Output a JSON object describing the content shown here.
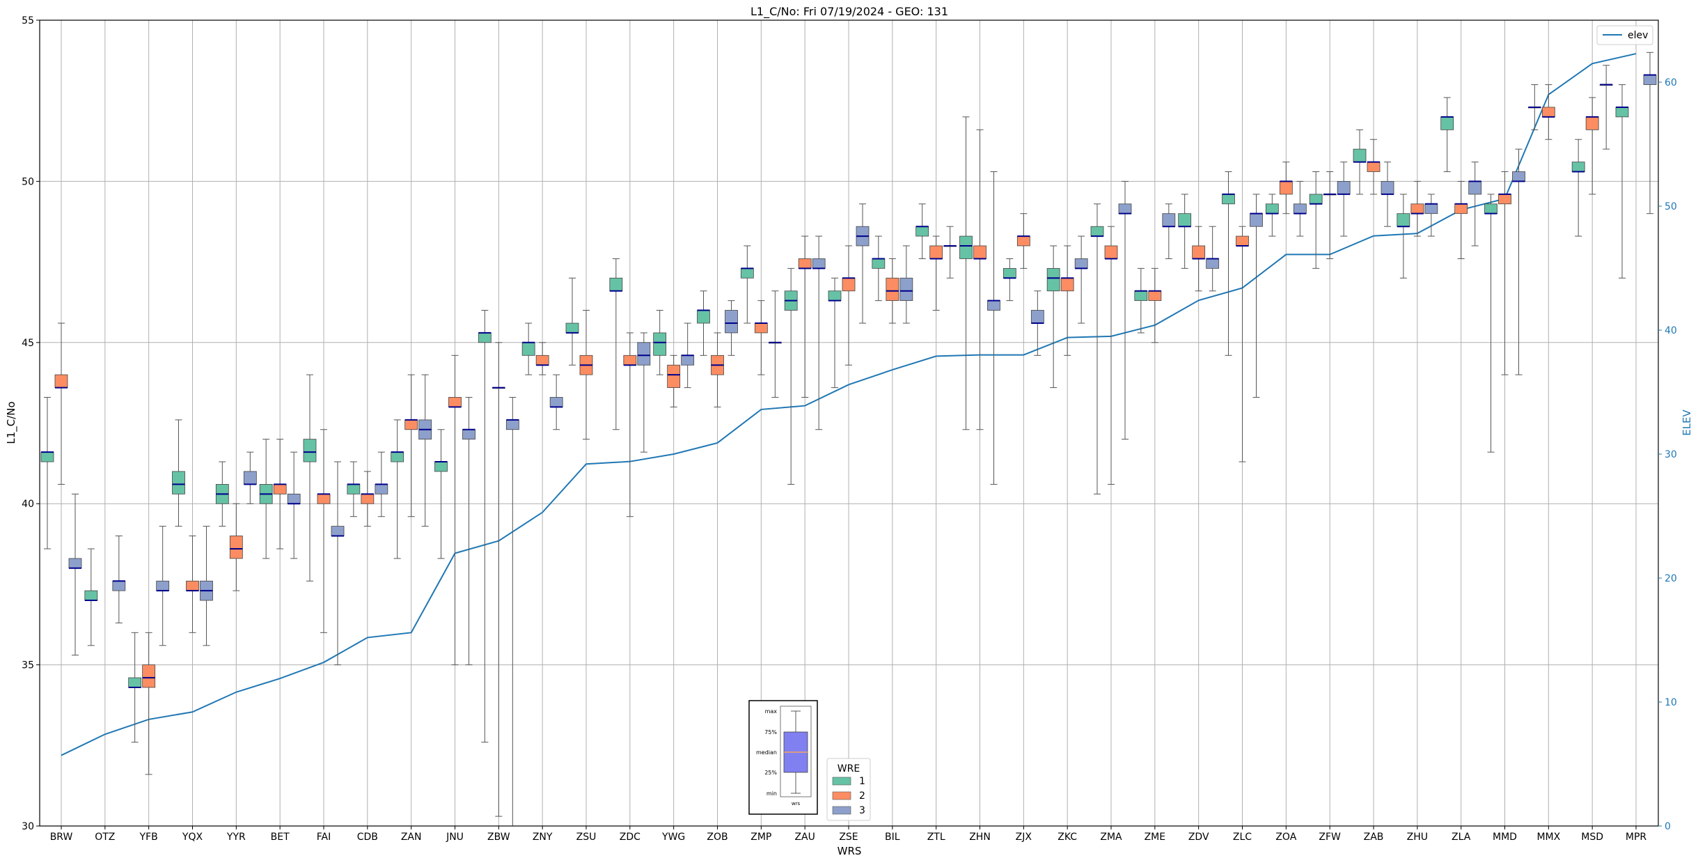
{
  "chart_data": {
    "type": "box",
    "title": "L1_C/No: Fri 07/19/2024 - GEO: 131",
    "xlabel": "WRS",
    "ylabel": "L1_C/No",
    "y2label": "ELEV",
    "ylim": [
      30,
      55
    ],
    "y2lim": [
      0,
      65
    ],
    "yticks": [
      30,
      35,
      40,
      45,
      50,
      55
    ],
    "y2ticks": [
      0,
      10,
      20,
      30,
      40,
      50,
      60
    ],
    "grid": true,
    "categories": [
      "BRW",
      "OTZ",
      "YFB",
      "YQX",
      "YYR",
      "BET",
      "FAI",
      "CDB",
      "ZAN",
      "JNU",
      "ZBW",
      "ZNY",
      "ZSU",
      "ZDC",
      "YWG",
      "ZOB",
      "ZMP",
      "ZAU",
      "ZSE",
      "BIL",
      "ZTL",
      "ZHN",
      "ZJX",
      "ZKC",
      "ZMA",
      "ZME",
      "ZDV",
      "ZLC",
      "ZOA",
      "ZFW",
      "ZAB",
      "ZHU",
      "ZLA",
      "MMD",
      "MMX",
      "MSD",
      "MPR"
    ],
    "series_colors": {
      "1": "#66c2a5",
      "2": "#fc8d62",
      "3": "#8da0cb"
    },
    "line_series": {
      "name": "elev",
      "color": "#1f77b4",
      "values": [
        5.7,
        7.4,
        8.6,
        9.2,
        10.8,
        11.9,
        13.2,
        15.2,
        15.6,
        22.0,
        23.0,
        25.3,
        29.2,
        29.4,
        30.0,
        30.9,
        33.6,
        33.9,
        35.6,
        36.8,
        37.9,
        38.0,
        38.0,
        39.4,
        39.5,
        40.4,
        42.4,
        43.4,
        46.1,
        46.1,
        47.6,
        47.8,
        49.7,
        50.6,
        59.0,
        61.5,
        62.3
      ]
    },
    "boxes": [
      {
        "station": "BRW",
        "wre": 1,
        "min": 38.6,
        "q1": 41.3,
        "median": 41.6,
        "q3": 41.6,
        "max": 43.3
      },
      {
        "station": "BRW",
        "wre": 2,
        "min": 40.6,
        "q1": 43.6,
        "median": 43.6,
        "q3": 44.0,
        "max": 45.6
      },
      {
        "station": "BRW",
        "wre": 3,
        "min": 35.3,
        "q1": 38.0,
        "median": 38.0,
        "q3": 38.3,
        "max": 40.3
      },
      {
        "station": "OTZ",
        "wre": 1,
        "min": 35.6,
        "q1": 37.0,
        "median": 37.0,
        "q3": 37.3,
        "max": 38.6
      },
      {
        "station": "OTZ",
        "wre": 3,
        "min": 36.3,
        "q1": 37.3,
        "median": 37.6,
        "q3": 37.6,
        "max": 39.0
      },
      {
        "station": "YFB",
        "wre": 1,
        "min": 32.6,
        "q1": 34.3,
        "median": 34.3,
        "q3": 34.6,
        "max": 36.0
      },
      {
        "station": "YFB",
        "wre": 2,
        "min": 31.6,
        "q1": 34.3,
        "median": 34.6,
        "q3": 35.0,
        "max": 36.0
      },
      {
        "station": "YFB",
        "wre": 3,
        "min": 35.6,
        "q1": 37.3,
        "median": 37.3,
        "q3": 37.6,
        "max": 39.3
      },
      {
        "station": "YQX",
        "wre": 1,
        "min": 39.3,
        "q1": 40.3,
        "median": 40.6,
        "q3": 41.0,
        "max": 42.6
      },
      {
        "station": "YQX",
        "wre": 2,
        "min": 36.0,
        "q1": 37.3,
        "median": 37.3,
        "q3": 37.6,
        "max": 39.0
      },
      {
        "station": "YQX",
        "wre": 3,
        "min": 35.6,
        "q1": 37.0,
        "median": 37.3,
        "q3": 37.6,
        "max": 39.3
      },
      {
        "station": "YYR",
        "wre": 1,
        "min": 39.3,
        "q1": 40.0,
        "median": 40.3,
        "q3": 40.6,
        "max": 41.3
      },
      {
        "station": "YYR",
        "wre": 2,
        "min": 37.3,
        "q1": 38.3,
        "median": 38.6,
        "q3": 39.0,
        "max": 40.0
      },
      {
        "station": "YYR",
        "wre": 3,
        "min": 40.0,
        "q1": 40.6,
        "median": 40.6,
        "q3": 41.0,
        "max": 41.6
      },
      {
        "station": "BET",
        "wre": 1,
        "min": 38.3,
        "q1": 40.0,
        "median": 40.3,
        "q3": 40.6,
        "max": 42.0
      },
      {
        "station": "BET",
        "wre": 2,
        "min": 38.6,
        "q1": 40.3,
        "median": 40.6,
        "q3": 40.6,
        "max": 42.0
      },
      {
        "station": "BET",
        "wre": 3,
        "min": 38.3,
        "q1": 40.0,
        "median": 40.0,
        "q3": 40.3,
        "max": 41.6
      },
      {
        "station": "FAI",
        "wre": 1,
        "min": 37.6,
        "q1": 41.3,
        "median": 41.6,
        "q3": 42.0,
        "max": 44.0
      },
      {
        "station": "FAI",
        "wre": 2,
        "min": 36.0,
        "q1": 40.0,
        "median": 40.3,
        "q3": 40.3,
        "max": 42.3
      },
      {
        "station": "FAI",
        "wre": 3,
        "min": 35.0,
        "q1": 39.0,
        "median": 39.0,
        "q3": 39.3,
        "max": 41.3
      },
      {
        "station": "CDB",
        "wre": 1,
        "min": 39.6,
        "q1": 40.3,
        "median": 40.6,
        "q3": 40.6,
        "max": 41.3
      },
      {
        "station": "CDB",
        "wre": 2,
        "min": 39.3,
        "q1": 40.0,
        "median": 40.3,
        "q3": 40.3,
        "max": 41.0
      },
      {
        "station": "CDB",
        "wre": 3,
        "min": 39.6,
        "q1": 40.3,
        "median": 40.6,
        "q3": 40.6,
        "max": 41.6
      },
      {
        "station": "ZAN",
        "wre": 1,
        "min": 38.3,
        "q1": 41.3,
        "median": 41.6,
        "q3": 41.6,
        "max": 42.6
      },
      {
        "station": "ZAN",
        "wre": 2,
        "min": 39.6,
        "q1": 42.3,
        "median": 42.6,
        "q3": 42.6,
        "max": 44.0
      },
      {
        "station": "ZAN",
        "wre": 3,
        "min": 39.3,
        "q1": 42.0,
        "median": 42.3,
        "q3": 42.6,
        "max": 44.0
      },
      {
        "station": "JNU",
        "wre": 1,
        "min": 38.3,
        "q1": 41.0,
        "median": 41.3,
        "q3": 41.3,
        "max": 42.3
      },
      {
        "station": "JNU",
        "wre": 2,
        "min": 35.0,
        "q1": 43.0,
        "median": 43.0,
        "q3": 43.3,
        "max": 44.6
      },
      {
        "station": "JNU",
        "wre": 3,
        "min": 35.0,
        "q1": 42.0,
        "median": 42.3,
        "q3": 42.3,
        "max": 43.3
      },
      {
        "station": "ZBW",
        "wre": 1,
        "min": 32.6,
        "q1": 45.0,
        "median": 45.3,
        "q3": 45.3,
        "max": 46.0
      },
      {
        "station": "ZBW",
        "wre": 2,
        "min": 30.3,
        "q1": 43.6,
        "median": 43.6,
        "q3": 43.6,
        "max": 45.0
      },
      {
        "station": "ZBW",
        "wre": 3,
        "min": 30.0,
        "q1": 42.3,
        "median": 42.6,
        "q3": 42.6,
        "max": 43.3
      },
      {
        "station": "ZNY",
        "wre": 1,
        "min": 44.0,
        "q1": 44.6,
        "median": 45.0,
        "q3": 45.0,
        "max": 45.6
      },
      {
        "station": "ZNY",
        "wre": 2,
        "min": 44.0,
        "q1": 44.3,
        "median": 44.3,
        "q3": 44.6,
        "max": 45.0
      },
      {
        "station": "ZNY",
        "wre": 3,
        "min": 42.3,
        "q1": 43.0,
        "median": 43.0,
        "q3": 43.3,
        "max": 44.0
      },
      {
        "station": "ZSU",
        "wre": 1,
        "min": 44.3,
        "q1": 45.3,
        "median": 45.3,
        "q3": 45.6,
        "max": 47.0
      },
      {
        "station": "ZSU",
        "wre": 2,
        "min": 42.0,
        "q1": 44.0,
        "median": 44.3,
        "q3": 44.6,
        "max": 46.0
      },
      {
        "station": "ZDC",
        "wre": 1,
        "min": 42.3,
        "q1": 46.6,
        "median": 46.6,
        "q3": 47.0,
        "max": 47.6
      },
      {
        "station": "ZDC",
        "wre": 2,
        "min": 39.6,
        "q1": 44.3,
        "median": 44.3,
        "q3": 44.6,
        "max": 45.3
      },
      {
        "station": "ZDC",
        "wre": 3,
        "min": 41.6,
        "q1": 44.3,
        "median": 44.6,
        "q3": 45.0,
        "max": 45.3
      },
      {
        "station": "YWG",
        "wre": 1,
        "min": 44.0,
        "q1": 44.6,
        "median": 45.0,
        "q3": 45.3,
        "max": 46.0
      },
      {
        "station": "YWG",
        "wre": 2,
        "min": 43.0,
        "q1": 43.6,
        "median": 44.0,
        "q3": 44.3,
        "max": 44.6
      },
      {
        "station": "YWG",
        "wre": 3,
        "min": 43.6,
        "q1": 44.3,
        "median": 44.6,
        "q3": 44.6,
        "max": 45.6
      },
      {
        "station": "ZOB",
        "wre": 1,
        "min": 44.6,
        "q1": 45.6,
        "median": 46.0,
        "q3": 46.0,
        "max": 46.6
      },
      {
        "station": "ZOB",
        "wre": 2,
        "min": 43.0,
        "q1": 44.0,
        "median": 44.3,
        "q3": 44.6,
        "max": 45.3
      },
      {
        "station": "ZOB",
        "wre": 3,
        "min": 44.6,
        "q1": 45.3,
        "median": 45.6,
        "q3": 46.0,
        "max": 46.3
      },
      {
        "station": "ZMP",
        "wre": 1,
        "min": 45.6,
        "q1": 47.0,
        "median": 47.3,
        "q3": 47.3,
        "max": 48.0
      },
      {
        "station": "ZMP",
        "wre": 2,
        "min": 44.0,
        "q1": 45.3,
        "median": 45.6,
        "q3": 45.6,
        "max": 46.3
      },
      {
        "station": "ZMP",
        "wre": 3,
        "min": 43.3,
        "q1": 45.0,
        "median": 45.0,
        "q3": 45.0,
        "max": 46.6
      },
      {
        "station": "ZAU",
        "wre": 1,
        "min": 40.6,
        "q1": 46.0,
        "median": 46.3,
        "q3": 46.6,
        "max": 47.3
      },
      {
        "station": "ZAU",
        "wre": 2,
        "min": 43.3,
        "q1": 47.3,
        "median": 47.3,
        "q3": 47.6,
        "max": 48.3
      },
      {
        "station": "ZAU",
        "wre": 3,
        "min": 42.3,
        "q1": 47.3,
        "median": 47.3,
        "q3": 47.6,
        "max": 48.3
      },
      {
        "station": "ZSE",
        "wre": 1,
        "min": 43.6,
        "q1": 46.3,
        "median": 46.3,
        "q3": 46.6,
        "max": 47.0
      },
      {
        "station": "ZSE",
        "wre": 2,
        "min": 44.3,
        "q1": 46.6,
        "median": 47.0,
        "q3": 47.0,
        "max": 48.0
      },
      {
        "station": "ZSE",
        "wre": 3,
        "min": 45.6,
        "q1": 48.0,
        "median": 48.3,
        "q3": 48.6,
        "max": 49.3
      },
      {
        "station": "BIL",
        "wre": 1,
        "min": 46.3,
        "q1": 47.3,
        "median": 47.6,
        "q3": 47.6,
        "max": 48.3
      },
      {
        "station": "BIL",
        "wre": 2,
        "min": 45.6,
        "q1": 46.3,
        "median": 46.6,
        "q3": 47.0,
        "max": 47.6
      },
      {
        "station": "BIL",
        "wre": 3,
        "min": 45.6,
        "q1": 46.3,
        "median": 46.6,
        "q3": 47.0,
        "max": 48.0
      },
      {
        "station": "ZTL",
        "wre": 1,
        "min": 47.6,
        "q1": 48.3,
        "median": 48.6,
        "q3": 48.6,
        "max": 49.3
      },
      {
        "station": "ZTL",
        "wre": 2,
        "min": 46.0,
        "q1": 47.6,
        "median": 47.6,
        "q3": 48.0,
        "max": 48.3
      },
      {
        "station": "ZTL",
        "wre": 3,
        "min": 47.0,
        "q1": 48.0,
        "median": 48.0,
        "q3": 48.0,
        "max": 48.6
      },
      {
        "station": "ZHN",
        "wre": 1,
        "min": 42.3,
        "q1": 47.6,
        "median": 48.0,
        "q3": 48.3,
        "max": 52.0
      },
      {
        "station": "ZHN",
        "wre": 2,
        "min": 42.3,
        "q1": 47.6,
        "median": 47.6,
        "q3": 48.0,
        "max": 51.6
      },
      {
        "station": "ZHN",
        "wre": 3,
        "min": 40.6,
        "q1": 46.0,
        "median": 46.3,
        "q3": 46.3,
        "max": 50.3
      },
      {
        "station": "ZJX",
        "wre": 1,
        "min": 46.3,
        "q1": 47.0,
        "median": 47.0,
        "q3": 47.3,
        "max": 47.6
      },
      {
        "station": "ZJX",
        "wre": 2,
        "min": 47.3,
        "q1": 48.0,
        "median": 48.3,
        "q3": 48.3,
        "max": 49.0
      },
      {
        "station": "ZJX",
        "wre": 3,
        "min": 44.6,
        "q1": 45.6,
        "median": 45.6,
        "q3": 46.0,
        "max": 46.6
      },
      {
        "station": "ZKC",
        "wre": 1,
        "min": 43.6,
        "q1": 46.6,
        "median": 47.0,
        "q3": 47.3,
        "max": 48.0
      },
      {
        "station": "ZKC",
        "wre": 2,
        "min": 44.6,
        "q1": 46.6,
        "median": 47.0,
        "q3": 47.0,
        "max": 48.0
      },
      {
        "station": "ZKC",
        "wre": 3,
        "min": 45.6,
        "q1": 47.3,
        "median": 47.3,
        "q3": 47.6,
        "max": 48.3
      },
      {
        "station": "ZMA",
        "wre": 1,
        "min": 40.3,
        "q1": 48.3,
        "median": 48.3,
        "q3": 48.6,
        "max": 49.3
      },
      {
        "station": "ZMA",
        "wre": 2,
        "min": 40.6,
        "q1": 47.6,
        "median": 47.6,
        "q3": 48.0,
        "max": 48.6
      },
      {
        "station": "ZMA",
        "wre": 3,
        "min": 42.0,
        "q1": 49.0,
        "median": 49.0,
        "q3": 49.3,
        "max": 50.0
      },
      {
        "station": "ZME",
        "wre": 1,
        "min": 45.3,
        "q1": 46.3,
        "median": 46.6,
        "q3": 46.6,
        "max": 47.3
      },
      {
        "station": "ZME",
        "wre": 2,
        "min": 45.0,
        "q1": 46.3,
        "median": 46.6,
        "q3": 46.6,
        "max": 47.3
      },
      {
        "station": "ZME",
        "wre": 3,
        "min": 47.6,
        "q1": 48.6,
        "median": 48.6,
        "q3": 49.0,
        "max": 49.3
      },
      {
        "station": "ZDV",
        "wre": 1,
        "min": 47.3,
        "q1": 48.6,
        "median": 48.6,
        "q3": 49.0,
        "max": 49.6
      },
      {
        "station": "ZDV",
        "wre": 2,
        "min": 46.6,
        "q1": 47.6,
        "median": 47.6,
        "q3": 48.0,
        "max": 48.6
      },
      {
        "station": "ZDV",
        "wre": 3,
        "min": 46.6,
        "q1": 47.3,
        "median": 47.6,
        "q3": 47.6,
        "max": 48.6
      },
      {
        "station": "ZLC",
        "wre": 1,
        "min": 44.6,
        "q1": 49.3,
        "median": 49.6,
        "q3": 49.6,
        "max": 50.3
      },
      {
        "station": "ZLC",
        "wre": 2,
        "min": 41.3,
        "q1": 48.0,
        "median": 48.0,
        "q3": 48.3,
        "max": 48.6
      },
      {
        "station": "ZLC",
        "wre": 3,
        "min": 43.3,
        "q1": 48.6,
        "median": 49.0,
        "q3": 49.0,
        "max": 49.6
      },
      {
        "station": "ZOA",
        "wre": 1,
        "min": 48.3,
        "q1": 49.0,
        "median": 49.0,
        "q3": 49.3,
        "max": 49.6
      },
      {
        "station": "ZOA",
        "wre": 2,
        "min": 49.0,
        "q1": 49.6,
        "median": 50.0,
        "q3": 50.0,
        "max": 50.6
      },
      {
        "station": "ZOA",
        "wre": 3,
        "min": 48.3,
        "q1": 49.0,
        "median": 49.0,
        "q3": 49.3,
        "max": 50.0
      },
      {
        "station": "ZFW",
        "wre": 1,
        "min": 47.3,
        "q1": 49.3,
        "median": 49.3,
        "q3": 49.6,
        "max": 50.3
      },
      {
        "station": "ZFW",
        "wre": 2,
        "min": 47.6,
        "q1": 49.6,
        "median": 49.6,
        "q3": 49.6,
        "max": 50.3
      },
      {
        "station": "ZFW",
        "wre": 3,
        "min": 48.3,
        "q1": 49.6,
        "median": 49.6,
        "q3": 50.0,
        "max": 50.6
      },
      {
        "station": "ZAB",
        "wre": 1,
        "min": 49.6,
        "q1": 50.6,
        "median": 50.6,
        "q3": 51.0,
        "max": 51.6
      },
      {
        "station": "ZAB",
        "wre": 2,
        "min": 49.6,
        "q1": 50.3,
        "median": 50.6,
        "q3": 50.6,
        "max": 51.3
      },
      {
        "station": "ZAB",
        "wre": 3,
        "min": 48.6,
        "q1": 49.6,
        "median": 49.6,
        "q3": 50.0,
        "max": 50.6
      },
      {
        "station": "ZHU",
        "wre": 1,
        "min": 47.0,
        "q1": 48.6,
        "median": 48.6,
        "q3": 49.0,
        "max": 49.6
      },
      {
        "station": "ZHU",
        "wre": 2,
        "min": 48.3,
        "q1": 49.0,
        "median": 49.0,
        "q3": 49.3,
        "max": 50.0
      },
      {
        "station": "ZHU",
        "wre": 3,
        "min": 48.3,
        "q1": 49.0,
        "median": 49.3,
        "q3": 49.3,
        "max": 49.6
      },
      {
        "station": "ZLA",
        "wre": 1,
        "min": 50.3,
        "q1": 51.6,
        "median": 52.0,
        "q3": 52.0,
        "max": 52.6
      },
      {
        "station": "ZLA",
        "wre": 2,
        "min": 47.6,
        "q1": 49.0,
        "median": 49.3,
        "q3": 49.3,
        "max": 50.0
      },
      {
        "station": "ZLA",
        "wre": 3,
        "min": 48.0,
        "q1": 49.6,
        "median": 50.0,
        "q3": 50.0,
        "max": 50.6
      },
      {
        "station": "MMD",
        "wre": 1,
        "min": 41.6,
        "q1": 49.0,
        "median": 49.0,
        "q3": 49.3,
        "max": 49.6
      },
      {
        "station": "MMD",
        "wre": 2,
        "min": 44.0,
        "q1": 49.3,
        "median": 49.6,
        "q3": 49.6,
        "max": 50.3
      },
      {
        "station": "MMD",
        "wre": 3,
        "min": 44.0,
        "q1": 50.0,
        "median": 50.0,
        "q3": 50.3,
        "max": 51.0
      },
      {
        "station": "MMX",
        "wre": 1,
        "min": 51.6,
        "q1": 52.3,
        "median": 52.3,
        "q3": 52.3,
        "max": 53.0
      },
      {
        "station": "MMX",
        "wre": 2,
        "min": 51.3,
        "q1": 52.0,
        "median": 52.0,
        "q3": 52.3,
        "max": 53.0
      },
      {
        "station": "MSD",
        "wre": 1,
        "min": 48.3,
        "q1": 50.3,
        "median": 50.3,
        "q3": 50.6,
        "max": 51.3
      },
      {
        "station": "MSD",
        "wre": 2,
        "min": 49.6,
        "q1": 51.6,
        "median": 52.0,
        "q3": 52.0,
        "max": 52.6
      },
      {
        "station": "MSD",
        "wre": 3,
        "min": 51.0,
        "q1": 53.0,
        "median": 53.0,
        "q3": 53.0,
        "max": 53.6
      },
      {
        "station": "MPR",
        "wre": 1,
        "min": 47.0,
        "q1": 52.0,
        "median": 52.3,
        "q3": 52.3,
        "max": 53.0
      },
      {
        "station": "MPR",
        "wre": 3,
        "min": 49.0,
        "q1": 53.0,
        "median": 53.3,
        "q3": 53.3,
        "max": 54.0
      }
    ],
    "legend_wre": {
      "title": "WRE",
      "items": [
        "1",
        "2",
        "3"
      ],
      "placement": "bottom-center"
    },
    "legend_elev": {
      "label": "elev",
      "placement": "top-right"
    },
    "inset_key": {
      "labels": [
        "max",
        "75%",
        "median",
        "25%",
        "min"
      ],
      "xlabel": "wrs"
    }
  }
}
